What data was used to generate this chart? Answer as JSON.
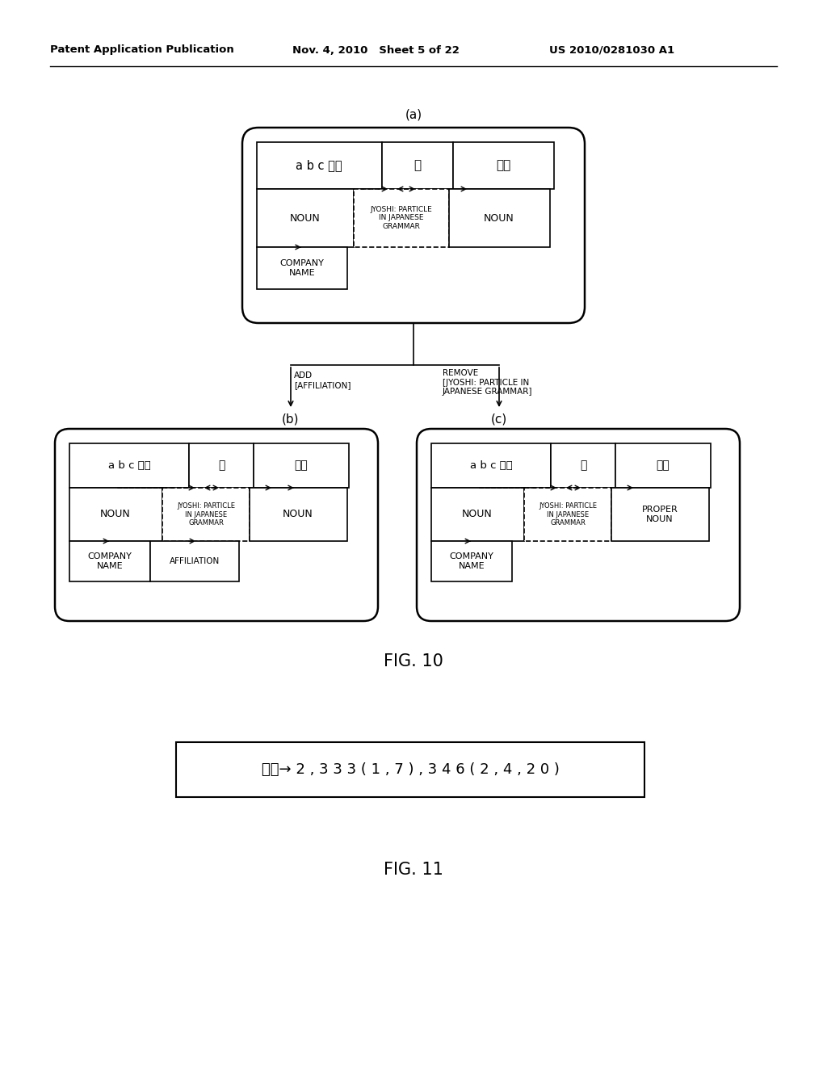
{
  "bg_color": "#ffffff",
  "header_left": "Patent Application Publication",
  "header_mid": "Nov. 4, 2010   Sheet 5 of 22",
  "header_right": "US 2010/0281030 A1",
  "fig10_label": "FIG. 10",
  "fig11_label": "FIG. 11",
  "label_a": "(a)",
  "label_b": "(b)",
  "label_c": "(c)",
  "add_label": "ADD\n[AFFILIATION]",
  "remove_label": "REMOVE\n[JYOSHI: PARTICLE IN\nJAPANESE GRAMMAR]",
  "fig11_text": "山田→ 2 , 3 3 3 ( 1 , 7 ) , 3 4 6 ( 2 , 4 , 2 0 )",
  "jyoshi_text": "JYOSHI: PARTICLE\nIN JAPANESE\nGRAMMAR",
  "noun_text": "NOUN",
  "company_name_text": "COMPANY\nNAME",
  "affiliation_text": "AFFILIATION",
  "proper_noun_text": "PROPER\nNOUN",
  "abc_text": "a b c 産業",
  "no_text": "の",
  "yamada_text": "山田"
}
